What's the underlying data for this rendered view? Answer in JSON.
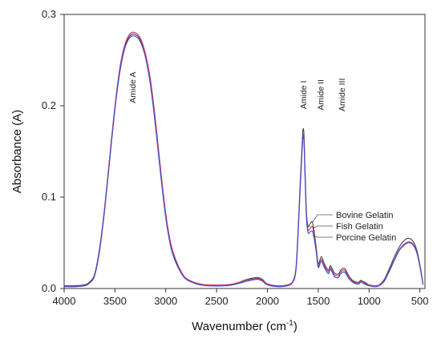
{
  "chart_data": {
    "type": "line",
    "title": "",
    "xlabel": "Wavenumber (cm",
    "xlabel_sup": "-1",
    "xlabel_end": ")",
    "ylabel": "Absorbance (A)",
    "xlim": [
      4000,
      450
    ],
    "ylim": [
      0,
      0.3
    ],
    "x_ticks": [
      4000,
      3500,
      3000,
      2500,
      2000,
      1500,
      1000,
      500
    ],
    "y_ticks": [
      0.0,
      0.1,
      0.2,
      0.3
    ],
    "x_tick_labels": [
      "4000",
      "3500",
      "3000",
      "2500",
      "2000",
      "1500",
      "1000",
      "500"
    ],
    "y_tick_labels": [
      "0.0",
      "0.1",
      "0.2",
      "0.3"
    ],
    "grid": false,
    "series": [
      {
        "name": "Bovine Gelatin",
        "color": "#444444",
        "points": [
          [
            4000,
            0.003
          ],
          [
            3900,
            0.003
          ],
          [
            3800,
            0.004
          ],
          [
            3750,
            0.007
          ],
          [
            3700,
            0.016
          ],
          [
            3650,
            0.045
          ],
          [
            3600,
            0.09
          ],
          [
            3550,
            0.145
          ],
          [
            3500,
            0.198
          ],
          [
            3450,
            0.24
          ],
          [
            3400,
            0.266
          ],
          [
            3350,
            0.277
          ],
          [
            3300,
            0.278
          ],
          [
            3250,
            0.272
          ],
          [
            3200,
            0.255
          ],
          [
            3150,
            0.225
          ],
          [
            3100,
            0.18
          ],
          [
            3050,
            0.128
          ],
          [
            3000,
            0.08
          ],
          [
            2950,
            0.048
          ],
          [
            2900,
            0.03
          ],
          [
            2850,
            0.018
          ],
          [
            2800,
            0.011
          ],
          [
            2700,
            0.006
          ],
          [
            2600,
            0.004
          ],
          [
            2400,
            0.004
          ],
          [
            2300,
            0.006
          ],
          [
            2200,
            0.01
          ],
          [
            2100,
            0.012
          ],
          [
            2050,
            0.01
          ],
          [
            2000,
            0.005
          ],
          [
            1900,
            0.003
          ],
          [
            1800,
            0.004
          ],
          [
            1750,
            0.008
          ],
          [
            1720,
            0.022
          ],
          [
            1700,
            0.06
          ],
          [
            1680,
            0.11
          ],
          [
            1660,
            0.155
          ],
          [
            1650,
            0.174
          ],
          [
            1640,
            0.168
          ],
          [
            1630,
            0.13
          ],
          [
            1615,
            0.082
          ],
          [
            1600,
            0.068
          ],
          [
            1580,
            0.071
          ],
          [
            1560,
            0.073
          ],
          [
            1545,
            0.066
          ],
          [
            1520,
            0.045
          ],
          [
            1500,
            0.027
          ],
          [
            1470,
            0.035
          ],
          [
            1440,
            0.027
          ],
          [
            1400,
            0.02
          ],
          [
            1380,
            0.025
          ],
          [
            1340,
            0.017
          ],
          [
            1300,
            0.016
          ],
          [
            1280,
            0.02
          ],
          [
            1240,
            0.022
          ],
          [
            1200,
            0.014
          ],
          [
            1150,
            0.008
          ],
          [
            1100,
            0.007
          ],
          [
            1080,
            0.009
          ],
          [
            1030,
            0.006
          ],
          [
            1000,
            0.004
          ],
          [
            950,
            0.003
          ],
          [
            900,
            0.004
          ],
          [
            850,
            0.01
          ],
          [
            800,
            0.022
          ],
          [
            750,
            0.035
          ],
          [
            700,
            0.046
          ],
          [
            650,
            0.053
          ],
          [
            610,
            0.055
          ],
          [
            570,
            0.052
          ],
          [
            530,
            0.042
          ],
          [
            490,
            0.02
          ],
          [
            470,
            0.005
          ]
        ]
      },
      {
        "name": "Fish Gelatin",
        "color": "#d0306a",
        "points": [
          [
            4000,
            0.002
          ],
          [
            3900,
            0.002
          ],
          [
            3800,
            0.003
          ],
          [
            3750,
            0.006
          ],
          [
            3700,
            0.015
          ],
          [
            3650,
            0.044
          ],
          [
            3600,
            0.09
          ],
          [
            3550,
            0.146
          ],
          [
            3500,
            0.2
          ],
          [
            3450,
            0.243
          ],
          [
            3400,
            0.268
          ],
          [
            3350,
            0.279
          ],
          [
            3300,
            0.28
          ],
          [
            3250,
            0.274
          ],
          [
            3200,
            0.257
          ],
          [
            3150,
            0.228
          ],
          [
            3100,
            0.183
          ],
          [
            3050,
            0.13
          ],
          [
            3000,
            0.082
          ],
          [
            2950,
            0.049
          ],
          [
            2900,
            0.031
          ],
          [
            2850,
            0.019
          ],
          [
            2800,
            0.011
          ],
          [
            2700,
            0.006
          ],
          [
            2600,
            0.004
          ],
          [
            2400,
            0.004
          ],
          [
            2300,
            0.006
          ],
          [
            2200,
            0.009
          ],
          [
            2100,
            0.011
          ],
          [
            2050,
            0.009
          ],
          [
            2000,
            0.005
          ],
          [
            1900,
            0.003
          ],
          [
            1800,
            0.004
          ],
          [
            1750,
            0.008
          ],
          [
            1720,
            0.02
          ],
          [
            1700,
            0.056
          ],
          [
            1680,
            0.105
          ],
          [
            1660,
            0.15
          ],
          [
            1650,
            0.168
          ],
          [
            1640,
            0.162
          ],
          [
            1630,
            0.125
          ],
          [
            1615,
            0.078
          ],
          [
            1600,
            0.064
          ],
          [
            1580,
            0.066
          ],
          [
            1560,
            0.068
          ],
          [
            1545,
            0.062
          ],
          [
            1520,
            0.042
          ],
          [
            1500,
            0.025
          ],
          [
            1470,
            0.032
          ],
          [
            1440,
            0.025
          ],
          [
            1400,
            0.018
          ],
          [
            1380,
            0.023
          ],
          [
            1340,
            0.015
          ],
          [
            1300,
            0.014
          ],
          [
            1280,
            0.018
          ],
          [
            1240,
            0.02
          ],
          [
            1200,
            0.012
          ],
          [
            1150,
            0.007
          ],
          [
            1100,
            0.006
          ],
          [
            1080,
            0.008
          ],
          [
            1030,
            0.005
          ],
          [
            1000,
            0.004
          ],
          [
            950,
            0.003
          ],
          [
            900,
            0.004
          ],
          [
            850,
            0.009
          ],
          [
            800,
            0.02
          ],
          [
            750,
            0.032
          ],
          [
            700,
            0.043
          ],
          [
            650,
            0.049
          ],
          [
            610,
            0.051
          ],
          [
            570,
            0.049
          ],
          [
            530,
            0.04
          ],
          [
            490,
            0.019
          ],
          [
            470,
            0.005
          ]
        ]
      },
      {
        "name": "Porcine Gelatin",
        "color": "#3a4fd0",
        "points": [
          [
            4000,
            0.002
          ],
          [
            3900,
            0.002
          ],
          [
            3800,
            0.003
          ],
          [
            3750,
            0.006
          ],
          [
            3700,
            0.014
          ],
          [
            3650,
            0.042
          ],
          [
            3600,
            0.087
          ],
          [
            3550,
            0.142
          ],
          [
            3500,
            0.196
          ],
          [
            3450,
            0.238
          ],
          [
            3400,
            0.264
          ],
          [
            3350,
            0.275
          ],
          [
            3300,
            0.276
          ],
          [
            3250,
            0.27
          ],
          [
            3200,
            0.253
          ],
          [
            3150,
            0.222
          ],
          [
            3100,
            0.176
          ],
          [
            3050,
            0.124
          ],
          [
            3000,
            0.077
          ],
          [
            2950,
            0.045
          ],
          [
            2900,
            0.028
          ],
          [
            2850,
            0.017
          ],
          [
            2800,
            0.01
          ],
          [
            2700,
            0.005
          ],
          [
            2600,
            0.003
          ],
          [
            2400,
            0.003
          ],
          [
            2300,
            0.005
          ],
          [
            2200,
            0.008
          ],
          [
            2100,
            0.01
          ],
          [
            2050,
            0.008
          ],
          [
            2000,
            0.004
          ],
          [
            1900,
            0.002
          ],
          [
            1800,
            0.003
          ],
          [
            1750,
            0.007
          ],
          [
            1720,
            0.019
          ],
          [
            1700,
            0.055
          ],
          [
            1680,
            0.104
          ],
          [
            1660,
            0.148
          ],
          [
            1650,
            0.166
          ],
          [
            1640,
            0.16
          ],
          [
            1630,
            0.122
          ],
          [
            1615,
            0.075
          ],
          [
            1600,
            0.061
          ],
          [
            1580,
            0.062
          ],
          [
            1560,
            0.063
          ],
          [
            1545,
            0.058
          ],
          [
            1520,
            0.04
          ],
          [
            1500,
            0.023
          ],
          [
            1470,
            0.03
          ],
          [
            1440,
            0.023
          ],
          [
            1400,
            0.016
          ],
          [
            1380,
            0.021
          ],
          [
            1340,
            0.013
          ],
          [
            1300,
            0.012
          ],
          [
            1280,
            0.016
          ],
          [
            1240,
            0.018
          ],
          [
            1200,
            0.011
          ],
          [
            1150,
            0.006
          ],
          [
            1100,
            0.005
          ],
          [
            1080,
            0.007
          ],
          [
            1030,
            0.004
          ],
          [
            1000,
            0.003
          ],
          [
            950,
            0.002
          ],
          [
            900,
            0.003
          ],
          [
            850,
            0.008
          ],
          [
            800,
            0.019
          ],
          [
            750,
            0.031
          ],
          [
            700,
            0.042
          ],
          [
            650,
            0.048
          ],
          [
            610,
            0.05
          ],
          [
            570,
            0.048
          ],
          [
            530,
            0.039
          ],
          [
            490,
            0.018
          ],
          [
            470,
            0.004
          ]
        ]
      }
    ],
    "annotations": [
      {
        "text": "Amide A",
        "x": 3330,
        "y": 0.22
      },
      {
        "text": "Amide I",
        "x": 1650,
        "y": 0.212
      },
      {
        "text": "Amide II",
        "x": 1480,
        "y": 0.212
      },
      {
        "text": "Amide III",
        "x": 1270,
        "y": 0.212
      }
    ],
    "legend": {
      "placement": "right",
      "entries": [
        "Bovine Gelatin",
        "Fish Gelatin",
        "Porcine Gelatin"
      ],
      "anchor_y": [
        0.073,
        0.066,
        0.058
      ]
    }
  }
}
